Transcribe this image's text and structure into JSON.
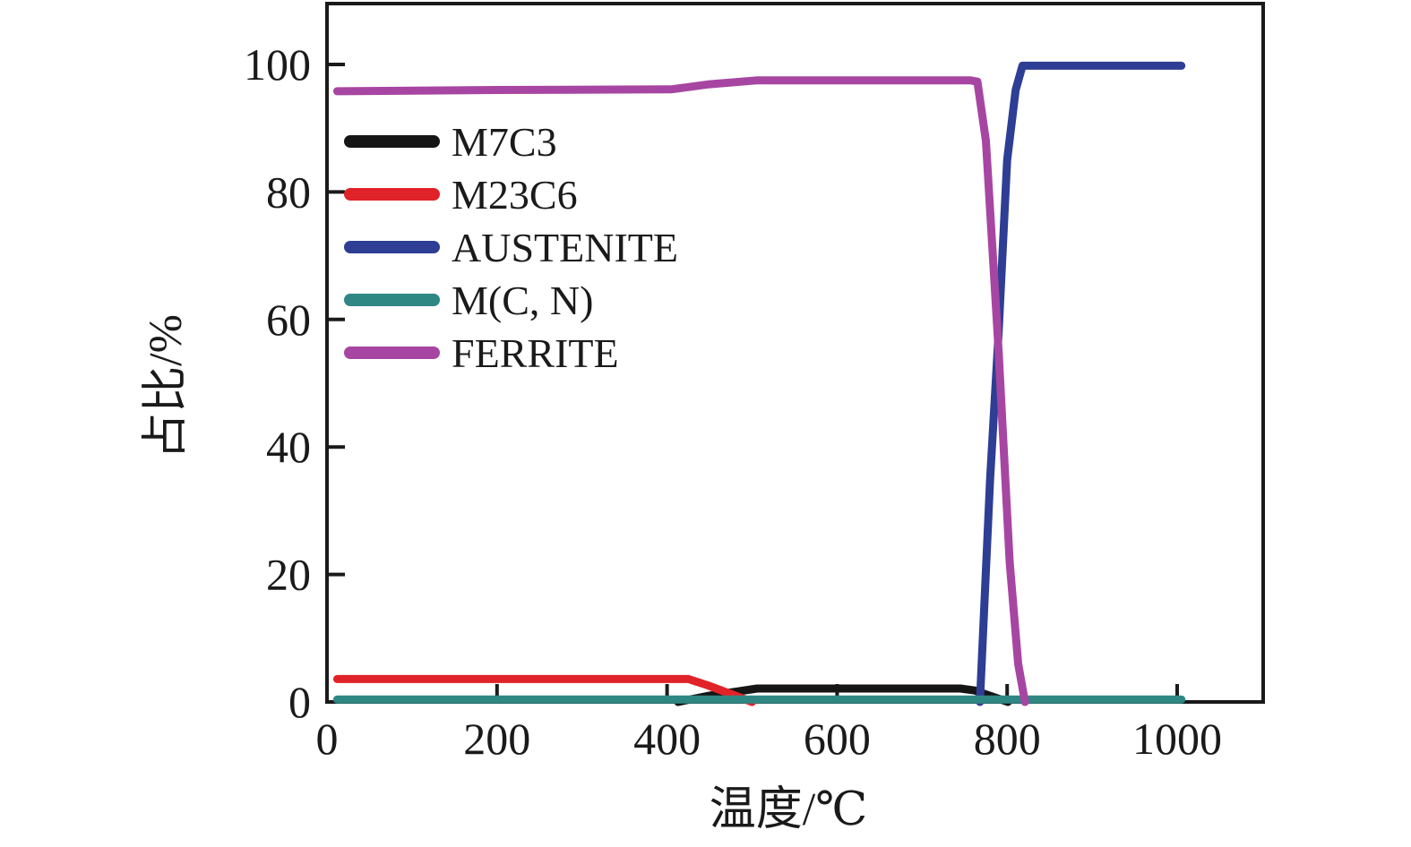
{
  "figure": {
    "background": "#ffffff",
    "axis_color": "#1a1a1a"
  },
  "chart_data": {
    "type": "line",
    "title": "",
    "xlabel": "温度/℃",
    "ylabel": "占比/%",
    "xlim": [
      0,
      1100
    ],
    "ylim": [
      0,
      110
    ],
    "x_ticks": [
      0,
      200,
      400,
      600,
      800,
      1000
    ],
    "y_ticks": [
      0,
      20,
      40,
      60,
      80,
      100
    ],
    "grid": false,
    "legend_position": "upper-left-inside",
    "series": [
      {
        "name": "M7C3",
        "color": "#151515",
        "points": [
          [
            413,
            0
          ],
          [
            450,
            1.0
          ],
          [
            506,
            2.1
          ],
          [
            650,
            2.1
          ],
          [
            745,
            2.1
          ],
          [
            762,
            1.8
          ],
          [
            801,
            0
          ]
        ]
      },
      {
        "name": "M23C6",
        "color": "#e02329",
        "points": [
          [
            12,
            3.6
          ],
          [
            200,
            3.6
          ],
          [
            425,
            3.6
          ],
          [
            448,
            2.6
          ],
          [
            500,
            0
          ]
        ]
      },
      {
        "name": "AUSTENITE",
        "color": "#2e3e94",
        "points": [
          [
            768,
            0
          ],
          [
            780,
            35
          ],
          [
            790,
            58
          ],
          [
            800,
            85
          ],
          [
            810,
            96
          ],
          [
            818,
            99.8
          ],
          [
            1005,
            99.8
          ]
        ]
      },
      {
        "name": "M(C, N)",
        "color": "#2f8784",
        "points": [
          [
            12,
            0.4
          ],
          [
            500,
            0.4
          ],
          [
            1005,
            0.4
          ]
        ]
      },
      {
        "name": "FERRITE",
        "color": "#a746a2",
        "points": [
          [
            12,
            95.8
          ],
          [
            200,
            96.0
          ],
          [
            405,
            96.1
          ],
          [
            450,
            96.9
          ],
          [
            505,
            97.5
          ],
          [
            650,
            97.5
          ],
          [
            757,
            97.5
          ],
          [
            765,
            97.3
          ],
          [
            775,
            88
          ],
          [
            790,
            55
          ],
          [
            803,
            22
          ],
          [
            813,
            6
          ],
          [
            821,
            0
          ]
        ]
      }
    ]
  }
}
